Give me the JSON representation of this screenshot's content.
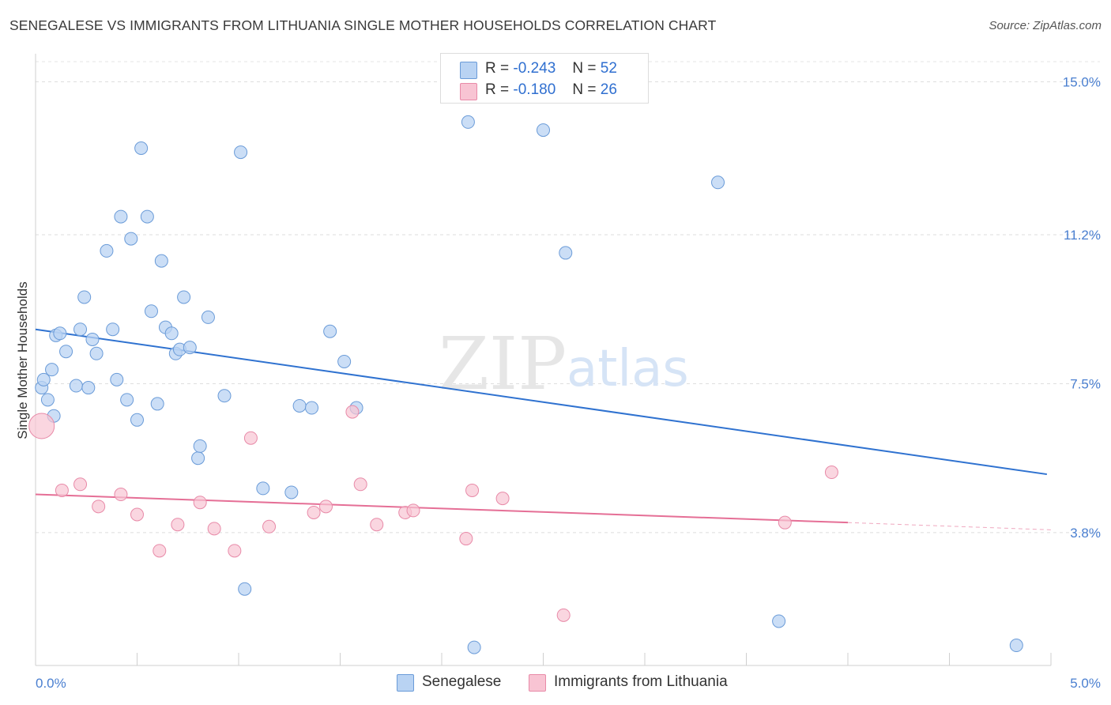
{
  "header": {
    "title": "SENEGALESE VS IMMIGRANTS FROM LITHUANIA SINGLE MOTHER HOUSEHOLDS CORRELATION CHART",
    "source": "Source: ZipAtlas.com"
  },
  "watermark": {
    "zip": "ZIP",
    "atlas": "atlas"
  },
  "legend": {
    "rows": [
      {
        "r_label": "R =",
        "r_value": "-0.243",
        "n_label": "N =",
        "n_value": "52"
      },
      {
        "r_label": "R =",
        "r_value": "-0.180",
        "n_label": "N =",
        "n_value": "26"
      }
    ]
  },
  "bottom_legend": [
    "Senegalese",
    "Immigrants from Lithuania"
  ],
  "chart_data": {
    "type": "scatter",
    "title": "SENEGALESE VS IMMIGRANTS FROM LITHUANIA SINGLE MOTHER HOUSEHOLDS CORRELATION CHART",
    "xlabel": "",
    "ylabel": "Single Mother Households",
    "xlim": [
      0.0,
      5.0
    ],
    "ylim": [
      0.5,
      15.5
    ],
    "x_tick_labels": [
      "0.0%",
      "5.0%"
    ],
    "y_ticks": [
      3.8,
      7.5,
      11.2,
      15.0
    ],
    "y_tick_labels": [
      "3.8%",
      "7.5%",
      "11.2%",
      "15.0%"
    ],
    "grid": true,
    "legend_position": "top-center",
    "colors": {
      "senegalese_fill": "#b9d3f3",
      "senegalese_edge": "#6a9bd8",
      "senegalese_line": "#2f72d0",
      "lithuania_fill": "#f8c4d3",
      "lithuania_edge": "#e88aa8",
      "lithuania_line": "#e56f96"
    },
    "series": [
      {
        "name": "Senegalese",
        "trend": {
          "x": [
            0.0,
            4.98
          ],
          "y": [
            8.85,
            5.25
          ]
        },
        "points": [
          [
            0.03,
            7.4
          ],
          [
            0.04,
            7.6
          ],
          [
            0.06,
            7.1
          ],
          [
            0.08,
            7.85
          ],
          [
            0.09,
            6.7
          ],
          [
            0.1,
            8.7
          ],
          [
            0.12,
            8.75
          ],
          [
            0.15,
            8.3
          ],
          [
            0.2,
            7.45
          ],
          [
            0.22,
            8.85
          ],
          [
            0.24,
            9.65
          ],
          [
            0.26,
            7.4
          ],
          [
            0.28,
            8.6
          ],
          [
            0.3,
            8.25
          ],
          [
            0.35,
            10.8
          ],
          [
            0.38,
            8.85
          ],
          [
            0.4,
            7.6
          ],
          [
            0.42,
            11.65
          ],
          [
            0.45,
            7.1
          ],
          [
            0.47,
            11.1
          ],
          [
            0.5,
            6.6
          ],
          [
            0.52,
            13.35
          ],
          [
            0.55,
            11.65
          ],
          [
            0.57,
            9.3
          ],
          [
            0.6,
            7.0
          ],
          [
            0.62,
            10.55
          ],
          [
            0.64,
            8.9
          ],
          [
            0.67,
            8.75
          ],
          [
            0.69,
            8.25
          ],
          [
            0.71,
            8.35
          ],
          [
            0.73,
            9.65
          ],
          [
            0.76,
            8.4
          ],
          [
            0.8,
            5.65
          ],
          [
            0.81,
            5.95
          ],
          [
            0.85,
            9.15
          ],
          [
            0.93,
            7.2
          ],
          [
            1.01,
            13.25
          ],
          [
            1.12,
            4.9
          ],
          [
            1.26,
            4.8
          ],
          [
            1.3,
            6.95
          ],
          [
            1.36,
            6.9
          ],
          [
            1.45,
            8.8
          ],
          [
            1.52,
            8.05
          ],
          [
            1.58,
            6.9
          ],
          [
            1.03,
            2.4
          ],
          [
            2.13,
            14.0
          ],
          [
            2.16,
            0.95
          ],
          [
            2.5,
            13.8
          ],
          [
            2.61,
            10.75
          ],
          [
            3.36,
            12.5
          ],
          [
            3.66,
            1.6
          ],
          [
            4.83,
            1.0
          ]
        ]
      },
      {
        "name": "Immigrants from Lithuania",
        "trend": {
          "x": [
            0.0,
            4.0
          ],
          "y": [
            4.75,
            4.05
          ]
        },
        "trend_dashed": {
          "x": [
            4.0,
            5.0
          ],
          "y": [
            4.05,
            3.87
          ]
        },
        "points": [
          [
            0.03,
            6.45
          ],
          [
            0.13,
            4.85
          ],
          [
            0.22,
            5.0
          ],
          [
            0.31,
            4.45
          ],
          [
            0.42,
            4.75
          ],
          [
            0.5,
            4.25
          ],
          [
            0.61,
            3.35
          ],
          [
            0.7,
            4.0
          ],
          [
            0.81,
            4.55
          ],
          [
            0.88,
            3.9
          ],
          [
            0.98,
            3.35
          ],
          [
            1.06,
            6.15
          ],
          [
            1.15,
            3.95
          ],
          [
            1.37,
            4.3
          ],
          [
            1.43,
            4.45
          ],
          [
            1.56,
            6.8
          ],
          [
            1.6,
            5.0
          ],
          [
            1.68,
            4.0
          ],
          [
            1.82,
            4.3
          ],
          [
            1.86,
            4.35
          ],
          [
            2.12,
            3.65
          ],
          [
            2.15,
            4.85
          ],
          [
            2.3,
            4.65
          ],
          [
            2.6,
            1.75
          ],
          [
            3.69,
            4.05
          ],
          [
            3.92,
            5.3
          ]
        ]
      }
    ]
  }
}
